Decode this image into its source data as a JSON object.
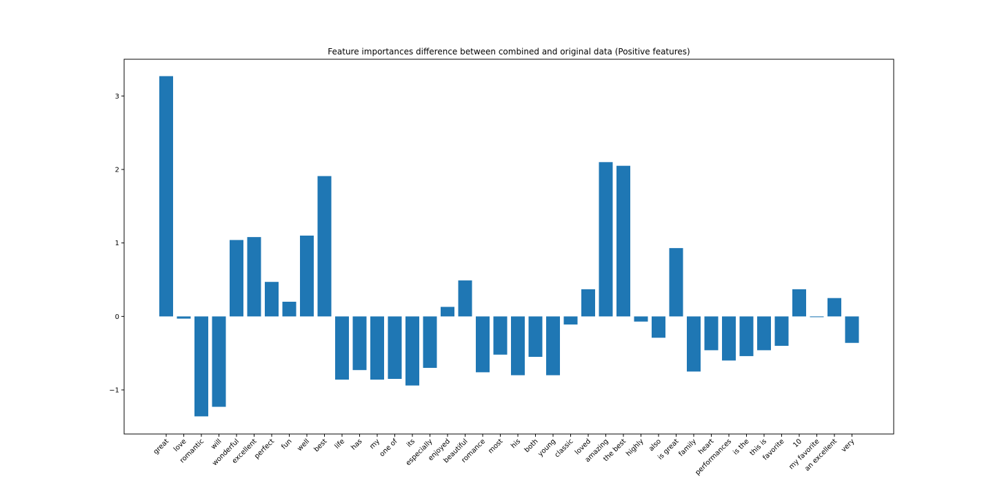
{
  "chart_data": {
    "type": "bar",
    "title": "Feature importances difference between combined and original data (Positive features)",
    "xlabel": "",
    "ylabel": "",
    "categories": [
      "great",
      "love",
      "romantic",
      "will",
      "wonderful",
      "excellent",
      "perfect",
      "fun",
      "well",
      "best",
      "life",
      "has",
      "my",
      "one of",
      "its",
      "especially",
      "enjoyed",
      "beautiful",
      "romance",
      "most",
      "his",
      "both",
      "young",
      "classic",
      "loved",
      "amazing",
      "the best",
      "highly",
      "also",
      "is great",
      "family",
      "heart",
      "performances",
      "is the",
      "this is",
      "favorite",
      "10",
      "my favorite",
      "an excellent",
      "very"
    ],
    "values": [
      3.27,
      -0.03,
      -1.36,
      -1.23,
      1.04,
      1.08,
      0.47,
      0.2,
      1.1,
      1.91,
      -0.86,
      -0.73,
      -0.86,
      -0.85,
      -0.94,
      -0.7,
      0.13,
      0.49,
      -0.76,
      -0.52,
      -0.8,
      -0.55,
      -0.8,
      -0.11,
      0.37,
      2.1,
      2.05,
      -0.07,
      -0.29,
      0.93,
      -0.75,
      -0.46,
      -0.6,
      -0.54,
      -0.46,
      -0.4,
      0.37,
      -0.01,
      0.25,
      -0.36
    ],
    "ylim": [
      -1.6,
      3.5
    ],
    "yticks": [
      -1,
      0,
      1,
      2,
      3
    ],
    "ytick_labels": [
      "−1",
      "0",
      "1",
      "2",
      "3"
    ],
    "bar_color": "#1f77b4",
    "grid": false,
    "legend": "none"
  }
}
